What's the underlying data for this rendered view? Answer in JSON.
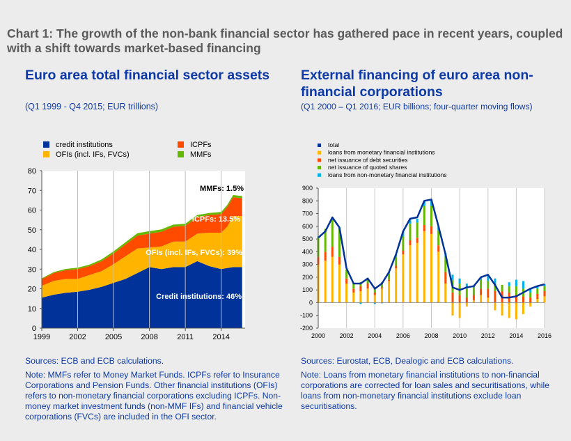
{
  "main_title": "Chart 1: The growth of the non-bank financial sector has gathered pace in recent years, coupled with a shift towards market-based financing",
  "left": {
    "title": "Euro area total financial sector assets",
    "subtitle": "(Q1 1999 - Q4 2015; EUR trillions)",
    "sources": "Sources: ECB and ECB calculations.",
    "note": "Note: MMFs refer to Money Market Funds. ICPFs refer to Insurance Corporations and Pension Funds. Other financial institutions (OFIs) refers to non-monetary financial corporations excluding ICPFs. Non-money market investment funds (non-MMF IFs) and financial vehicle corporations (FVCs) are included in the OFI sector."
  },
  "right": {
    "title": "External financing of euro area non-financial corporations",
    "subtitle": "(Q1 2000 – Q1 2016; EUR billions; four-quarter moving flows)",
    "sources": "Sources: Eurostat, ECB, Dealogic and ECB calculations.",
    "note": "Note: Loans from monetary financial institutions to non-financial corporations are corrected for loan sales and securitisations, while loans from non-monetary financial institutions exclude loan securitisations."
  },
  "colors": {
    "credit_institutions": "#003299",
    "ofis": "#ffb400",
    "icpfs": "#ff4b00",
    "mmfs": "#65b800",
    "nonmfi_loans": "#00b1ea",
    "total_line": "#003299"
  },
  "chart_data": [
    {
      "type": "area",
      "stacked": true,
      "x": [
        1999.0,
        2000.0,
        2001.0,
        2002.0,
        2003.0,
        2004.0,
        2005.0,
        2006.0,
        2007.0,
        2008.0,
        2009.0,
        2010.0,
        2011.0,
        2012.0,
        2013.0,
        2014.0,
        2014.5,
        2015.0,
        2015.75
      ],
      "series": [
        {
          "name": "credit institutions",
          "values": [
            15.5,
            17,
            18,
            18.5,
            19.5,
            21,
            23,
            25,
            28,
            31,
            30,
            31,
            31,
            34,
            31.5,
            30,
            30.5,
            31,
            31
          ]
        },
        {
          "name": "OFIs (incl. IFs, FVCs)",
          "values": [
            6,
            7,
            7,
            6.5,
            7.5,
            8,
            9.5,
            11.5,
            12.5,
            10,
            11.5,
            13,
            13,
            14,
            17,
            18.5,
            21,
            26,
            26
          ]
        },
        {
          "name": "ICPFs",
          "values": [
            3.4,
            4,
            4.5,
            5,
            4.5,
            5,
            5.5,
            6,
            6.5,
            7,
            7.5,
            7.5,
            8,
            8.5,
            9,
            9.5,
            10,
            9.5,
            9
          ]
        },
        {
          "name": "MMFs",
          "values": [
            0.4,
            0.5,
            0.6,
            0.7,
            0.8,
            0.9,
            1,
            1.1,
            1.2,
            1.3,
            1.2,
            1.1,
            1,
            1,
            1,
            1,
            1,
            1.1,
            1.1
          ]
        }
      ],
      "legend": [
        "credit institutions",
        "OFIs (incl. IFs, FVCs)",
        "ICPFs",
        "MMFs"
      ],
      "annotations": [
        "MMFs: 1.5%",
        "ICPFs: 13.5%",
        "OFIs (incl. IFs, FVCs): 39%",
        "Credit institutions: 46%"
      ],
      "xticks": [
        "1999",
        "2002",
        "2005",
        "2008",
        "2011",
        "2014"
      ],
      "yticks": [
        "0",
        "10",
        "20",
        "30",
        "40",
        "50",
        "60",
        "70",
        "80"
      ],
      "xlim": [
        1999,
        2016
      ],
      "ylim": [
        0,
        80
      ],
      "grid": "vertical"
    },
    {
      "type": "bar",
      "stacked": true,
      "x": [
        2000.0,
        2000.5,
        2001.0,
        2001.5,
        2002.0,
        2002.5,
        2003.0,
        2003.5,
        2004.0,
        2004.5,
        2005.0,
        2005.5,
        2006.0,
        2006.5,
        2007.0,
        2007.5,
        2008.0,
        2008.5,
        2009.0,
        2009.5,
        2010.0,
        2010.5,
        2011.0,
        2011.5,
        2012.0,
        2012.5,
        2013.0,
        2013.5,
        2014.0,
        2014.5,
        2015.0,
        2015.5,
        2016.0
      ],
      "series": [
        {
          "name": "total",
          "type": "line",
          "values": [
            510,
            560,
            670,
            590,
            270,
            150,
            150,
            190,
            110,
            150,
            240,
            380,
            560,
            660,
            670,
            800,
            810,
            600,
            380,
            120,
            100,
            120,
            130,
            200,
            220,
            140,
            40,
            40,
            50,
            80,
            110,
            130,
            145
          ]
        },
        {
          "name": "loans from monetary financial institutions",
          "values": [
            300,
            330,
            360,
            300,
            150,
            80,
            90,
            110,
            60,
            110,
            170,
            270,
            380,
            450,
            470,
            560,
            540,
            400,
            150,
            -100,
            -120,
            -30,
            20,
            60,
            40,
            -60,
            -100,
            -120,
            -130,
            -90,
            -30,
            30,
            50
          ]
        },
        {
          "name": "net issuance of debt securities",
          "values": [
            60,
            70,
            80,
            60,
            40,
            30,
            40,
            40,
            20,
            10,
            10,
            20,
            30,
            40,
            40,
            50,
            60,
            50,
            90,
            80,
            60,
            40,
            40,
            50,
            70,
            90,
            90,
            80,
            60,
            50,
            40,
            40,
            40
          ]
        },
        {
          "name": "net issuance of quoted shares",
          "values": [
            150,
            180,
            230,
            220,
            70,
            40,
            30,
            40,
            30,
            40,
            50,
            70,
            110,
            130,
            120,
            150,
            160,
            120,
            120,
            100,
            90,
            70,
            60,
            70,
            60,
            60,
            50,
            50,
            70,
            60,
            40,
            40,
            40
          ]
        },
        {
          "name": "loans from non-monetary financial institutions",
          "values": [
            10,
            0,
            0,
            10,
            0,
            0,
            -10,
            0,
            -10,
            -5,
            10,
            20,
            40,
            40,
            30,
            40,
            50,
            30,
            30,
            40,
            40,
            40,
            10,
            20,
            50,
            40,
            0,
            30,
            50,
            60,
            30,
            20,
            15
          ]
        }
      ],
      "legend": [
        "total",
        "loans from monetary financial institutions",
        "net issuance of debt securities",
        "net issuance of quoted shares",
        "loans from non-monetary financial institutions"
      ],
      "xticks": [
        "2000",
        "2002",
        "2004",
        "2006",
        "2008",
        "2010",
        "2012",
        "2014",
        "2016"
      ],
      "yticks": [
        "900",
        "800",
        "700",
        "600",
        "500",
        "400",
        "300",
        "200",
        "100",
        "0",
        "-100",
        "-200"
      ],
      "xlim": [
        2000,
        2016
      ],
      "ylim": [
        -200,
        900
      ],
      "grid": "vertical"
    }
  ]
}
